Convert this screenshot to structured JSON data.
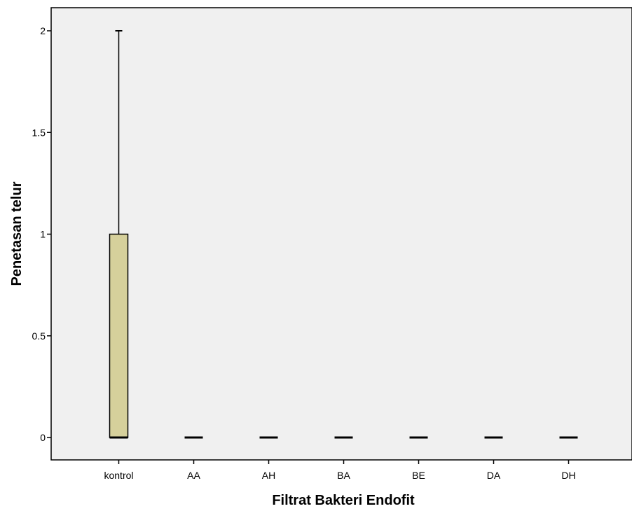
{
  "chart_data": {
    "type": "box",
    "title": "",
    "xlabel": "Filtrat Bakteri Endofit",
    "ylabel": "Penetasan telur",
    "ylim": [
      -0.11,
      2.1
    ],
    "yticks": [
      0,
      0.5,
      1,
      1.5,
      2
    ],
    "ytick_labels": [
      "0",
      "0.5",
      "1",
      "1.5",
      "2"
    ],
    "grid": false,
    "legend": "none",
    "categories": [
      "kontrol",
      "AA",
      "AH",
      "BA",
      "BE",
      "DA",
      "DH"
    ],
    "boxes": [
      {
        "category": "kontrol",
        "min": 0,
        "q1": 0,
        "median": 0,
        "q3": 1,
        "max": 2
      },
      {
        "category": "AA",
        "min": 0,
        "q1": 0,
        "median": 0,
        "q3": 0,
        "max": 0
      },
      {
        "category": "AH",
        "min": 0,
        "q1": 0,
        "median": 0,
        "q3": 0,
        "max": 0
      },
      {
        "category": "BA",
        "min": 0,
        "q1": 0,
        "median": 0,
        "q3": 0,
        "max": 0
      },
      {
        "category": "BE",
        "min": 0,
        "q1": 0,
        "median": 0,
        "q3": 0,
        "max": 0
      },
      {
        "category": "DA",
        "min": 0,
        "q1": 0,
        "median": 0,
        "q3": 0,
        "max": 0
      },
      {
        "category": "DH",
        "min": 0,
        "q1": 0,
        "median": 0,
        "q3": 0,
        "max": 0
      }
    ],
    "colors": {
      "plot_background": "#f0f0f0",
      "box_fill": "#d6d09b",
      "line": "#000000"
    }
  }
}
